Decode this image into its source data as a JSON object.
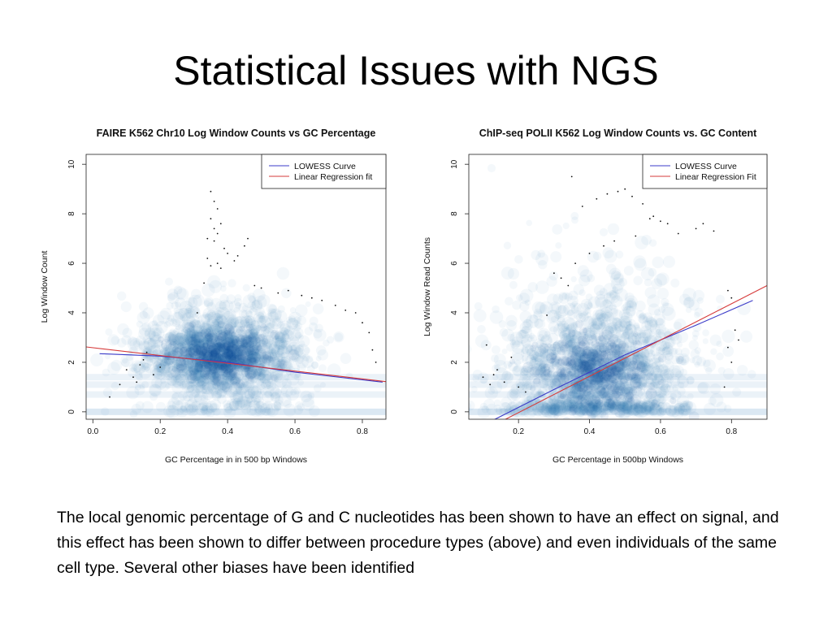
{
  "slide": {
    "title": "Statistical Issues with NGS",
    "caption": "The local genomic percentage of G and C nucleotides has been shown to have an effect on signal, and this effect has been shown to differ between procedure types (above) and even individuals of the same cell type.   Several other biases have been identified"
  },
  "chart_data": [
    {
      "type": "scatter",
      "title": "FAIRE K562 Chr10 Log Window Counts vs GC Percentage",
      "xlabel": "GC Percentage in in 500 bp Windows",
      "ylabel": "Log Window Count",
      "xlim": [
        -0.02,
        0.87
      ],
      "ylim": [
        -0.3,
        10.4
      ],
      "xticks": [
        0.0,
        0.2,
        0.4,
        0.6,
        0.8
      ],
      "xtick_labels": [
        "0.0",
        "0.2",
        "0.4",
        "0.6",
        "0.8"
      ],
      "yticks": [
        0,
        2,
        4,
        6,
        8,
        10
      ],
      "ytick_labels": [
        "0",
        "2",
        "4",
        "6",
        "8",
        "10"
      ],
      "grid": false,
      "legend": {
        "position": "top-right",
        "entries": [
          {
            "label": "LOWESS Curve",
            "color": "#3b3bc8"
          },
          {
            "label": "Linear Regression fit",
            "color": "#d63b3b"
          }
        ]
      },
      "density": {
        "colormap": "white-to-blue",
        "center": [
          0.38,
          2.3
        ],
        "spread": [
          0.12,
          1.3
        ]
      },
      "series": [
        {
          "name": "LOWESS Curve",
          "kind": "line",
          "color": "#3b3bc8",
          "x": [
            0.02,
            0.2,
            0.4,
            0.6,
            0.86
          ],
          "y": [
            2.35,
            2.25,
            2.0,
            1.6,
            1.2
          ]
        },
        {
          "name": "Linear Regression fit",
          "kind": "line",
          "color": "#d63b3b",
          "x": [
            -0.02,
            0.87
          ],
          "y": [
            2.62,
            1.22
          ]
        }
      ],
      "outliers": {
        "x": [
          0.35,
          0.36,
          0.37,
          0.35,
          0.38,
          0.37,
          0.36,
          0.39,
          0.34,
          0.35,
          0.37,
          0.38,
          0.36,
          0.34,
          0.4,
          0.42,
          0.45,
          0.48,
          0.5,
          0.55,
          0.58,
          0.62,
          0.65,
          0.68,
          0.72,
          0.75,
          0.78,
          0.8,
          0.82,
          0.83,
          0.84,
          0.1,
          0.12,
          0.14,
          0.15,
          0.18,
          0.2,
          0.08,
          0.05,
          0.13,
          0.16,
          0.46,
          0.43,
          0.33,
          0.31
        ],
        "y": [
          8.9,
          8.5,
          8.2,
          7.8,
          7.6,
          7.2,
          6.9,
          6.6,
          6.2,
          5.9,
          6.0,
          5.8,
          7.4,
          7.0,
          6.4,
          6.1,
          6.7,
          5.1,
          5.0,
          4.8,
          4.9,
          4.7,
          4.6,
          4.5,
          4.3,
          4.1,
          4.0,
          3.6,
          3.2,
          2.5,
          2.0,
          1.7,
          1.4,
          1.9,
          2.1,
          1.5,
          1.8,
          1.1,
          0.6,
          1.2,
          2.4,
          7.0,
          6.3,
          5.2,
          4.0
        ]
      }
    },
    {
      "type": "scatter",
      "title": "ChIP-seq POLII K562 Log Window Counts vs. GC Content",
      "xlabel": "GC Percentage in 500bp Windows",
      "ylabel": "Log Window Read Counts",
      "xlim": [
        0.06,
        0.9
      ],
      "ylim": [
        -0.3,
        10.4
      ],
      "xticks": [
        0.2,
        0.4,
        0.6,
        0.8
      ],
      "xtick_labels": [
        "0.2",
        "0.4",
        "0.6",
        "0.8"
      ],
      "yticks": [
        0,
        2,
        4,
        6,
        8,
        10
      ],
      "ytick_labels": [
        "0",
        "2",
        "4",
        "6",
        "8",
        "10"
      ],
      "grid": false,
      "legend": {
        "position": "top-right",
        "entries": [
          {
            "label": "LOWESS Curve",
            "color": "#3b3bc8"
          },
          {
            "label": "Linear Regression Fit",
            "color": "#d63b3b"
          }
        ]
      },
      "density": {
        "colormap": "white-to-blue",
        "center": [
          0.42,
          1.6
        ],
        "spread": [
          0.14,
          2.2
        ]
      },
      "series": [
        {
          "name": "LOWESS Curve",
          "kind": "line",
          "color": "#3b3bc8",
          "x": [
            0.12,
            0.3,
            0.5,
            0.7,
            0.86
          ],
          "y": [
            -0.4,
            0.9,
            2.3,
            3.5,
            4.5
          ]
        },
        {
          "name": "Linear Regression Fit",
          "kind": "line",
          "color": "#d63b3b",
          "x": [
            0.15,
            0.9
          ],
          "y": [
            -0.4,
            5.1
          ]
        }
      ],
      "outliers": {
        "x": [
          0.35,
          0.38,
          0.42,
          0.45,
          0.48,
          0.5,
          0.52,
          0.55,
          0.58,
          0.6,
          0.62,
          0.65,
          0.7,
          0.72,
          0.75,
          0.3,
          0.28,
          0.32,
          0.34,
          0.4,
          0.44,
          0.47,
          0.53,
          0.57,
          0.79,
          0.8,
          0.81,
          0.79,
          0.82,
          0.8,
          0.78,
          0.1,
          0.12,
          0.14,
          0.16,
          0.18,
          0.11,
          0.13,
          0.2,
          0.22,
          0.36
        ],
        "y": [
          9.5,
          8.3,
          8.6,
          8.8,
          8.9,
          9.0,
          8.7,
          8.4,
          7.9,
          7.7,
          7.6,
          7.2,
          7.4,
          7.6,
          7.3,
          5.6,
          3.9,
          5.4,
          5.1,
          6.4,
          6.7,
          6.9,
          7.1,
          7.8,
          4.9,
          4.6,
          3.3,
          2.6,
          2.9,
          2.0,
          1.0,
          1.4,
          1.1,
          1.7,
          1.2,
          2.2,
          2.7,
          1.5,
          1.0,
          0.8,
          6.0
        ]
      }
    }
  ]
}
